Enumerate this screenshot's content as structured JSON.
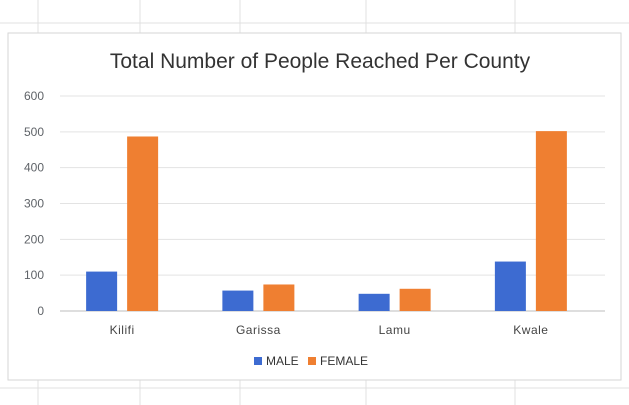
{
  "chart_data": {
    "type": "bar",
    "title": "Total Number of People Reached Per County",
    "categories": [
      "Kilifi",
      "Garissa",
      "Lamu",
      "Kwale"
    ],
    "series": [
      {
        "name": "MALE",
        "values": [
          110,
          57,
          48,
          138
        ],
        "color": "#3d6bd1"
      },
      {
        "name": "FEMALE",
        "values": [
          487,
          74,
          62,
          502
        ],
        "color": "#ef7f31"
      }
    ],
    "ylim": [
      0,
      600
    ],
    "yticks": [
      "0",
      "100",
      "200",
      "300",
      "400",
      "500",
      "600"
    ],
    "grid": true,
    "legend_position": "bottom"
  },
  "colors": {
    "gridline": "#e3e3e3",
    "sheet_grid": "#e0e0e0",
    "chart_border": "#d6d6d6",
    "axis": "#bdbdbd"
  }
}
